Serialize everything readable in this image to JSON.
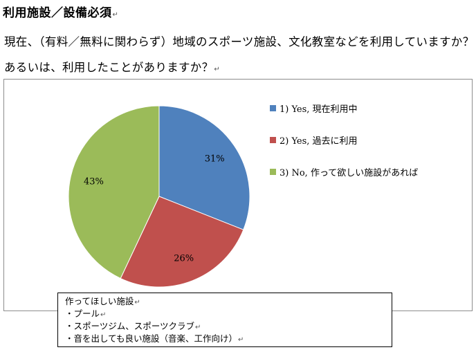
{
  "heading": "利用施設／設備必須",
  "question": "現在、（有料／無料に関わらず）地域のスポーツ施設、文化教室などを利用していますか？あるいは、利用したことがありますか？",
  "chart_data": {
    "type": "pie",
    "title": "",
    "legend_position": "right",
    "slices": [
      {
        "label": "1) Yes, 現在利用中",
        "value": 31,
        "display": "31%",
        "color": "#4f81bd"
      },
      {
        "label": "2) Yes,  過去に利用",
        "value": 26,
        "display": "26%",
        "color": "#c0504d"
      },
      {
        "label": "3) No,    作って欲しい施設があれば",
        "value": 43,
        "display": "43%",
        "color": "#9bbb59"
      }
    ]
  },
  "wish_box": {
    "title": "作ってほしい施設",
    "items": [
      "・プール",
      "・スポーツジム、スポーツクラブ",
      "・音を出しても良い施設（音楽、工作向け）"
    ]
  }
}
